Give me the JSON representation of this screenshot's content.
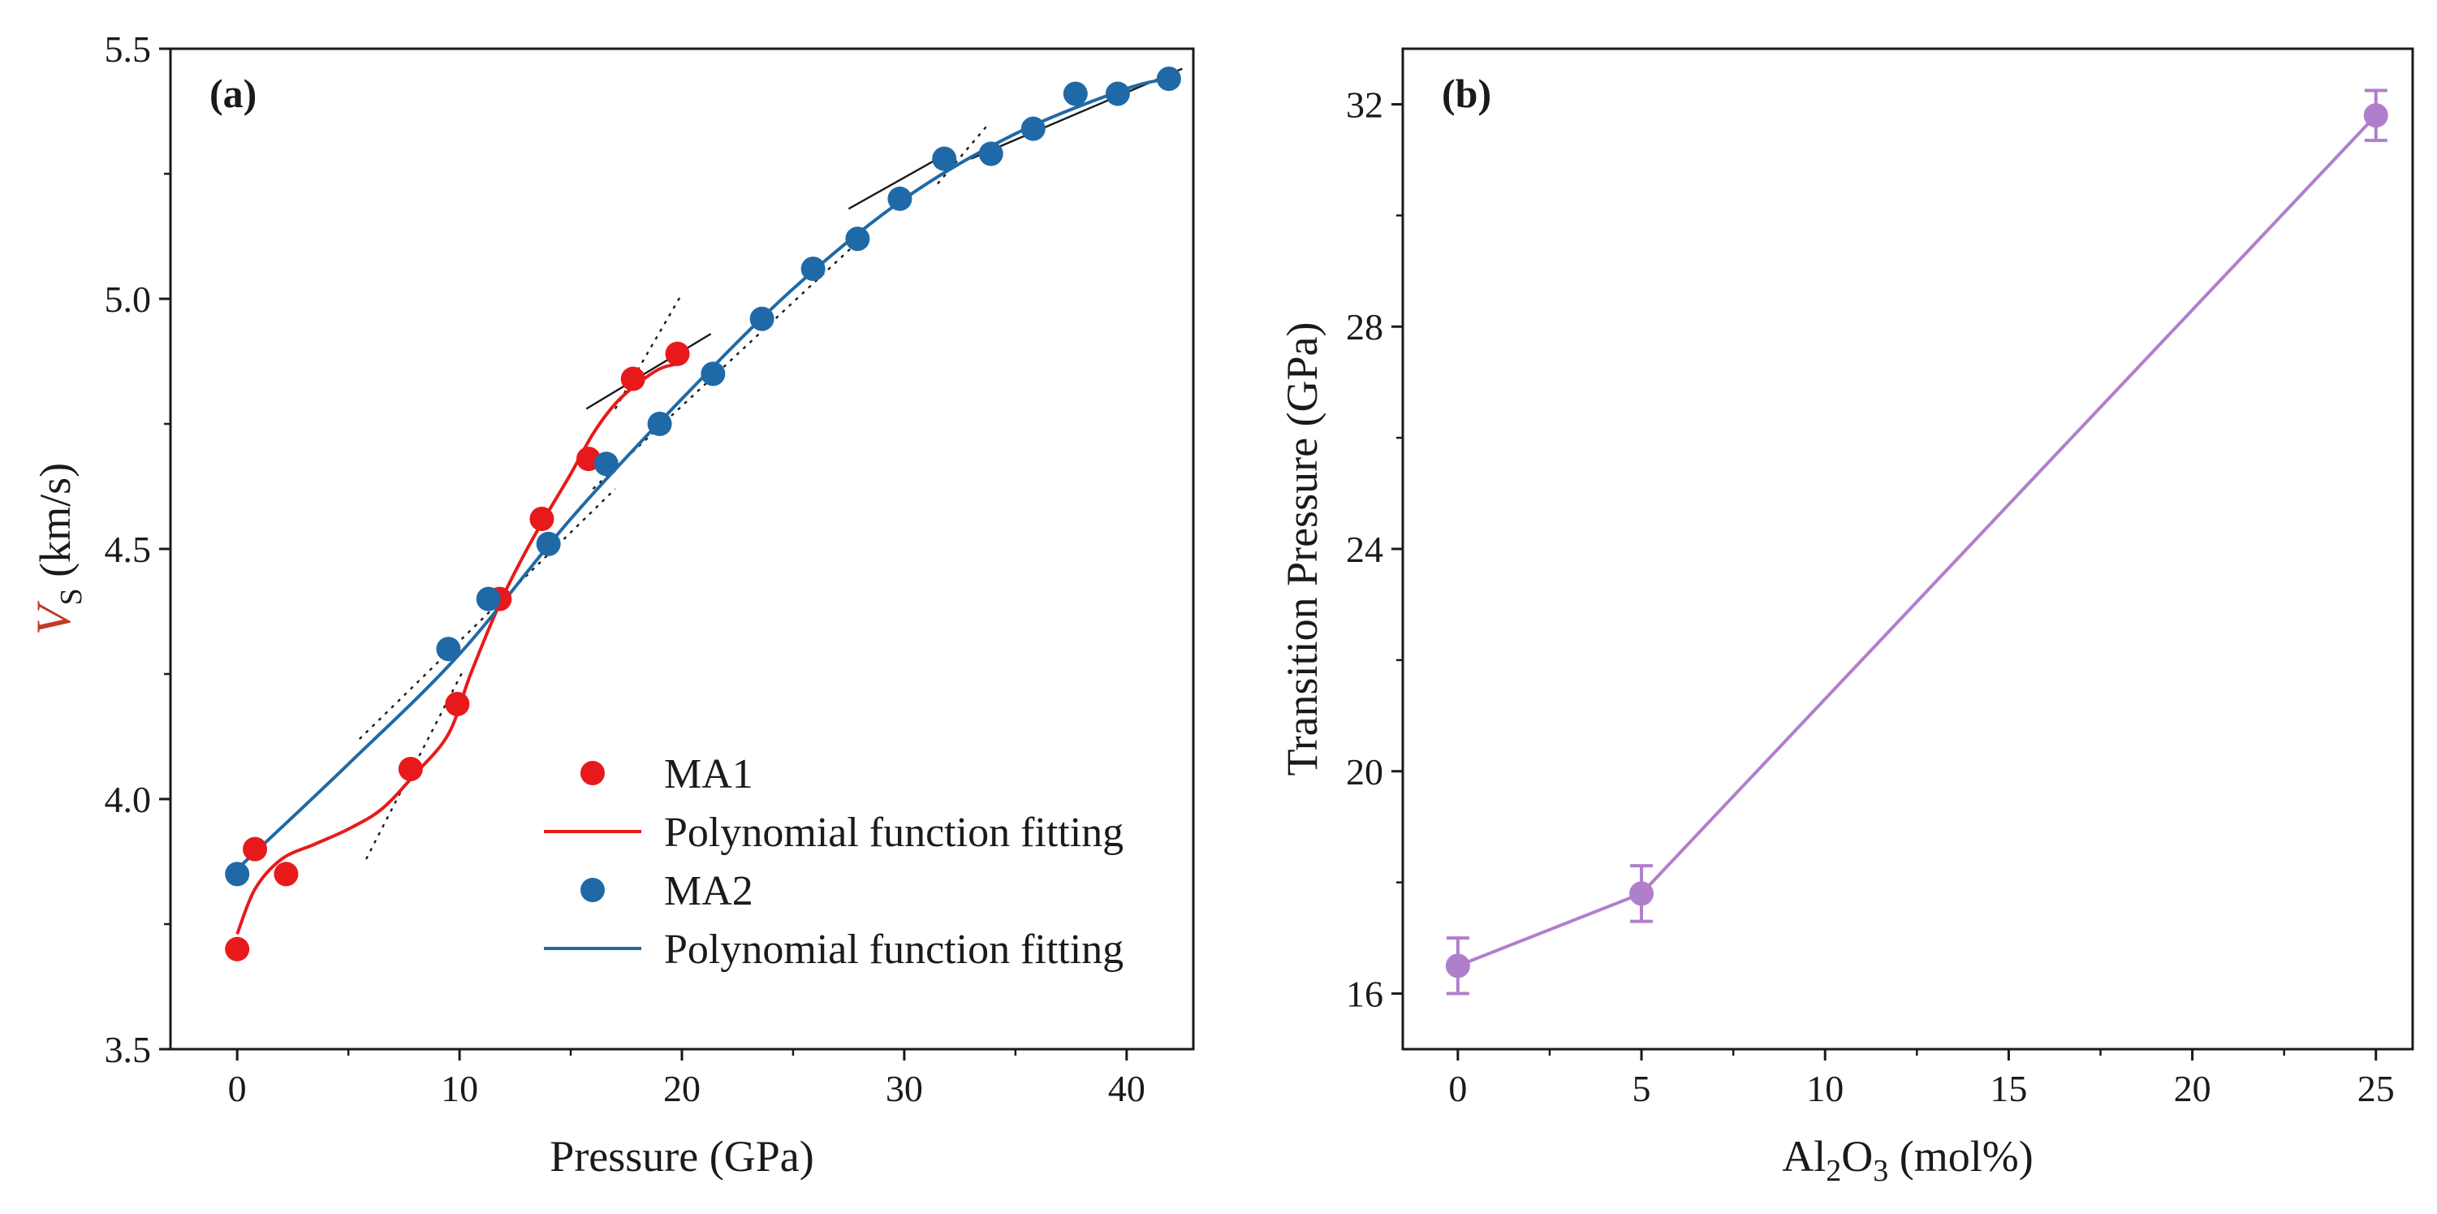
{
  "chart_data": [
    {
      "panel": "(a)",
      "type": "scatter",
      "xlabel": "Pressure (GPa)",
      "ylabel_main": "V",
      "ylabel_sub": "S",
      "ylabel_rest": " (km/s)",
      "xlim": [
        -3,
        43
      ],
      "ylim": [
        3.5,
        5.5
      ],
      "xticks": [
        0,
        10,
        20,
        30,
        40
      ],
      "xtick_labels": [
        "0",
        "10",
        "20",
        "30",
        "40"
      ],
      "yticks": [
        3.5,
        4.0,
        4.5,
        5.0,
        5.5
      ],
      "ytick_labels": [
        "3.5",
        "4.0",
        "4.5",
        "5.0",
        "5.5"
      ],
      "series": [
        {
          "name": "MA1",
          "color": "#e8191a",
          "points": [
            [
              0.0,
              3.7
            ],
            [
              0.8,
              3.9
            ],
            [
              2.2,
              3.85
            ],
            [
              7.8,
              4.06
            ],
            [
              9.9,
              4.19
            ],
            [
              11.8,
              4.4
            ],
            [
              13.7,
              4.56
            ],
            [
              15.8,
              4.68
            ],
            [
              17.8,
              4.84
            ],
            [
              19.8,
              4.89
            ]
          ]
        },
        {
          "name": "MA2",
          "color": "#1f6aa6",
          "points": [
            [
              0.0,
              3.85
            ],
            [
              9.5,
              4.3
            ],
            [
              11.3,
              4.4
            ],
            [
              14.0,
              4.51
            ],
            [
              16.6,
              4.67
            ],
            [
              19.0,
              4.75
            ],
            [
              21.4,
              4.85
            ],
            [
              23.6,
              4.96
            ],
            [
              25.9,
              5.06
            ],
            [
              27.9,
              5.12
            ],
            [
              29.8,
              5.2
            ],
            [
              31.8,
              5.28
            ],
            [
              33.9,
              5.29
            ],
            [
              35.8,
              5.34
            ],
            [
              37.7,
              5.41
            ],
            [
              39.6,
              5.41
            ],
            [
              41.9,
              5.44
            ]
          ]
        }
      ],
      "fits": [
        {
          "name": "Polynomial function fitting",
          "color": "#e8191a",
          "points": [
            [
              0.0,
              3.73
            ],
            [
              0.8,
              3.82
            ],
            [
              2.0,
              3.88
            ],
            [
              3.5,
              3.91
            ],
            [
              5.0,
              3.94
            ],
            [
              6.5,
              3.98
            ],
            [
              8.0,
              4.05
            ],
            [
              9.5,
              4.13
            ],
            [
              10.5,
              4.25
            ],
            [
              11.8,
              4.39
            ],
            [
              12.8,
              4.48
            ],
            [
              13.8,
              4.56
            ],
            [
              15.0,
              4.65
            ],
            [
              16.0,
              4.73
            ],
            [
              17.0,
              4.79
            ],
            [
              18.0,
              4.83
            ],
            [
              19.0,
              4.86
            ],
            [
              19.8,
              4.87
            ]
          ]
        },
        {
          "name": "Polynomial function fitting",
          "color": "#1f6aa6",
          "points": [
            [
              0.0,
              3.86
            ],
            [
              5.0,
              4.07
            ],
            [
              10.0,
              4.29
            ],
            [
              15.0,
              4.56
            ],
            [
              20.0,
              4.8
            ],
            [
              25.0,
              5.02
            ],
            [
              30.0,
              5.2
            ],
            [
              35.0,
              5.33
            ],
            [
              40.0,
              5.42
            ],
            [
              42.0,
              5.44
            ]
          ]
        }
      ],
      "tangent_lines": [
        {
          "style": "dotted",
          "points": [
            [
              5.8,
              3.88
            ],
            [
              10.2,
              4.26
            ]
          ]
        },
        {
          "style": "dotted",
          "points": [
            [
              5.5,
              4.12
            ],
            [
              17.0,
              4.62
            ]
          ]
        },
        {
          "style": "solid",
          "points": [
            [
              15.7,
              4.78
            ],
            [
              21.3,
              4.93
            ]
          ]
        },
        {
          "style": "dotted",
          "points": [
            [
              17.0,
              4.78
            ],
            [
              20.0,
              5.01
            ]
          ]
        },
        {
          "style": "dotted",
          "points": [
            [
              16.0,
              4.62
            ],
            [
              28.3,
              5.13
            ]
          ]
        },
        {
          "style": "solid",
          "points": [
            [
              27.5,
              5.18
            ],
            [
              31.5,
              5.28
            ]
          ]
        },
        {
          "style": "dotted",
          "points": [
            [
              31.5,
              5.23
            ],
            [
              33.8,
              5.35
            ]
          ]
        },
        {
          "style": "solid",
          "points": [
            [
              33.0,
              5.28
            ],
            [
              42.5,
              5.46
            ]
          ]
        }
      ],
      "legend": {
        "placement": "lower-right",
        "entries": [
          {
            "label": "MA1",
            "kind": "marker",
            "color": "#e8191a"
          },
          {
            "label": "Polynomial function fitting",
            "kind": "line",
            "color": "#e8191a"
          },
          {
            "label": "MA2",
            "kind": "marker",
            "color": "#1f6aa6"
          },
          {
            "label": "Polynomial function fitting",
            "kind": "line",
            "color": "#1f6aa6"
          }
        ]
      }
    },
    {
      "panel": "(b)",
      "type": "line",
      "xlabel_main": "Al",
      "xlabel_sub1": "2",
      "xlabel_mid": "O",
      "xlabel_sub2": "3",
      "xlabel_rest": " (mol%)",
      "ylabel": "Transition Pressure (GPa)",
      "xlim": [
        -1.5,
        26
      ],
      "ylim": [
        15.0,
        33.0
      ],
      "xticks": [
        0,
        5,
        10,
        15,
        20,
        25
      ],
      "xtick_labels": [
        "0",
        "5",
        "10",
        "15",
        "20",
        "25"
      ],
      "yticks": [
        16,
        20,
        24,
        28,
        32
      ],
      "ytick_labels": [
        "16",
        "20",
        "24",
        "28",
        "32"
      ],
      "series": [
        {
          "name": "Transition Pressure",
          "color": "#b07fcc",
          "x": [
            0,
            5,
            25
          ],
          "y": [
            16.5,
            17.8,
            31.8
          ],
          "yerr": [
            0.5,
            0.5,
            0.45
          ]
        }
      ]
    }
  ]
}
